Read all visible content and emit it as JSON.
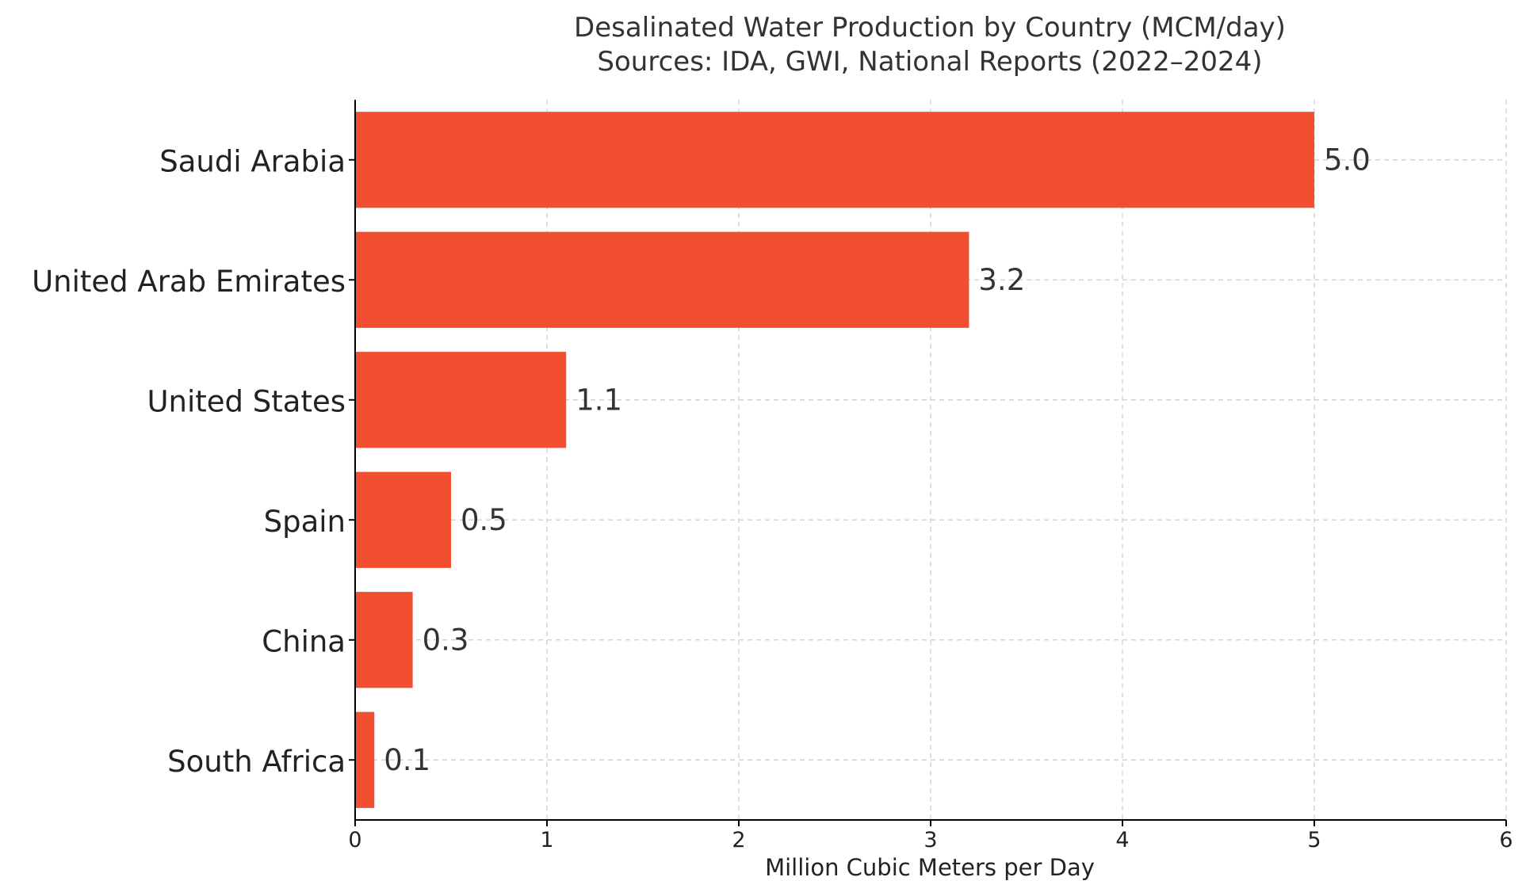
{
  "chart_data": {
    "type": "bar",
    "orientation": "horizontal",
    "title": "Desalinated Water Production by Country (MCM/day)",
    "subtitle": "Sources: IDA, GWI, National Reports (2022–2024)",
    "categories": [
      "Saudi Arabia",
      "United Arab Emirates",
      "United States",
      "Spain",
      "China",
      "South Africa"
    ],
    "values": [
      5.0,
      3.2,
      1.1,
      0.5,
      0.3,
      0.1
    ],
    "value_labels": [
      "5.0",
      "3.2",
      "1.1",
      "0.5",
      "0.3",
      "0.1"
    ],
    "xlabel": "Million Cubic Meters per Day",
    "ylabel": "",
    "xlim": [
      0,
      6
    ],
    "xticks": [
      0,
      1,
      2,
      3,
      4,
      5,
      6
    ],
    "xtick_labels": [
      "0",
      "1",
      "2",
      "3",
      "4",
      "5",
      "6"
    ],
    "grid": true,
    "legend": "none",
    "bar_color": "#f24f30"
  }
}
